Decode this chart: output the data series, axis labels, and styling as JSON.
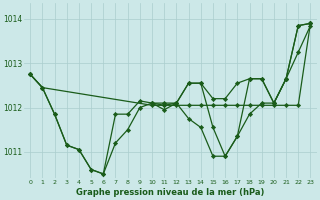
{
  "background_color": "#cce8e8",
  "grid_color": "#aacece",
  "line_color": "#1a5c1a",
  "marker_color": "#1a5c1a",
  "xlabel": "Graphe pression niveau de la mer (hPa)",
  "xlim": [
    -0.5,
    23.5
  ],
  "ylim": [
    1010.4,
    1014.35
  ],
  "yticks": [
    1011,
    1012,
    1013,
    1014
  ],
  "xticks": [
    0,
    1,
    2,
    3,
    4,
    5,
    6,
    7,
    8,
    9,
    10,
    11,
    12,
    13,
    14,
    15,
    16,
    17,
    18,
    19,
    20,
    21,
    22,
    23
  ],
  "series": [
    {
      "x": [
        0,
        1,
        10,
        11,
        12,
        13,
        14,
        15,
        16,
        17,
        18,
        19,
        20,
        21,
        22,
        23
      ],
      "y": [
        1012.75,
        1012.45,
        1012.05,
        1012.05,
        1012.05,
        1012.05,
        1012.05,
        1012.05,
        1012.05,
        1012.05,
        1012.05,
        1012.05,
        1012.05,
        1012.05,
        1012.05,
        1013.9
      ]
    },
    {
      "x": [
        0,
        1,
        2,
        3,
        4,
        5,
        6,
        7,
        8,
        9,
        10,
        11,
        12,
        13,
        14,
        15,
        16,
        17,
        18,
        19,
        20,
        21,
        22,
        23
      ],
      "y": [
        1012.75,
        1012.45,
        1011.85,
        1011.15,
        1011.05,
        1010.6,
        1010.5,
        1011.85,
        1011.85,
        1012.15,
        1012.1,
        1011.95,
        1012.1,
        1011.75,
        1011.55,
        1010.9,
        1010.9,
        1011.35,
        1011.85,
        1012.1,
        1012.1,
        1012.65,
        1013.85,
        1013.9
      ]
    },
    {
      "x": [
        0,
        1,
        2,
        3,
        4,
        5,
        6,
        7,
        8,
        9,
        10,
        11,
        12,
        13,
        14,
        15,
        16,
        17,
        18,
        19,
        20,
        21,
        22,
        23
      ],
      "y": [
        1012.75,
        1012.45,
        1011.85,
        1011.15,
        1011.05,
        1010.6,
        1010.5,
        1011.2,
        1011.5,
        1012.0,
        1012.1,
        1012.05,
        1012.1,
        1012.55,
        1012.55,
        1012.2,
        1012.2,
        1012.55,
        1012.65,
        1012.65,
        1012.1,
        1012.65,
        1013.85,
        1013.9
      ]
    },
    {
      "x": [
        10,
        11,
        12,
        13,
        14,
        15,
        16,
        17,
        18,
        19,
        20,
        21,
        22,
        23
      ],
      "y": [
        1012.1,
        1012.1,
        1012.1,
        1012.55,
        1012.55,
        1011.55,
        1010.9,
        1011.35,
        1012.65,
        1012.65,
        1012.1,
        1012.65,
        1013.25,
        1013.85
      ]
    }
  ]
}
